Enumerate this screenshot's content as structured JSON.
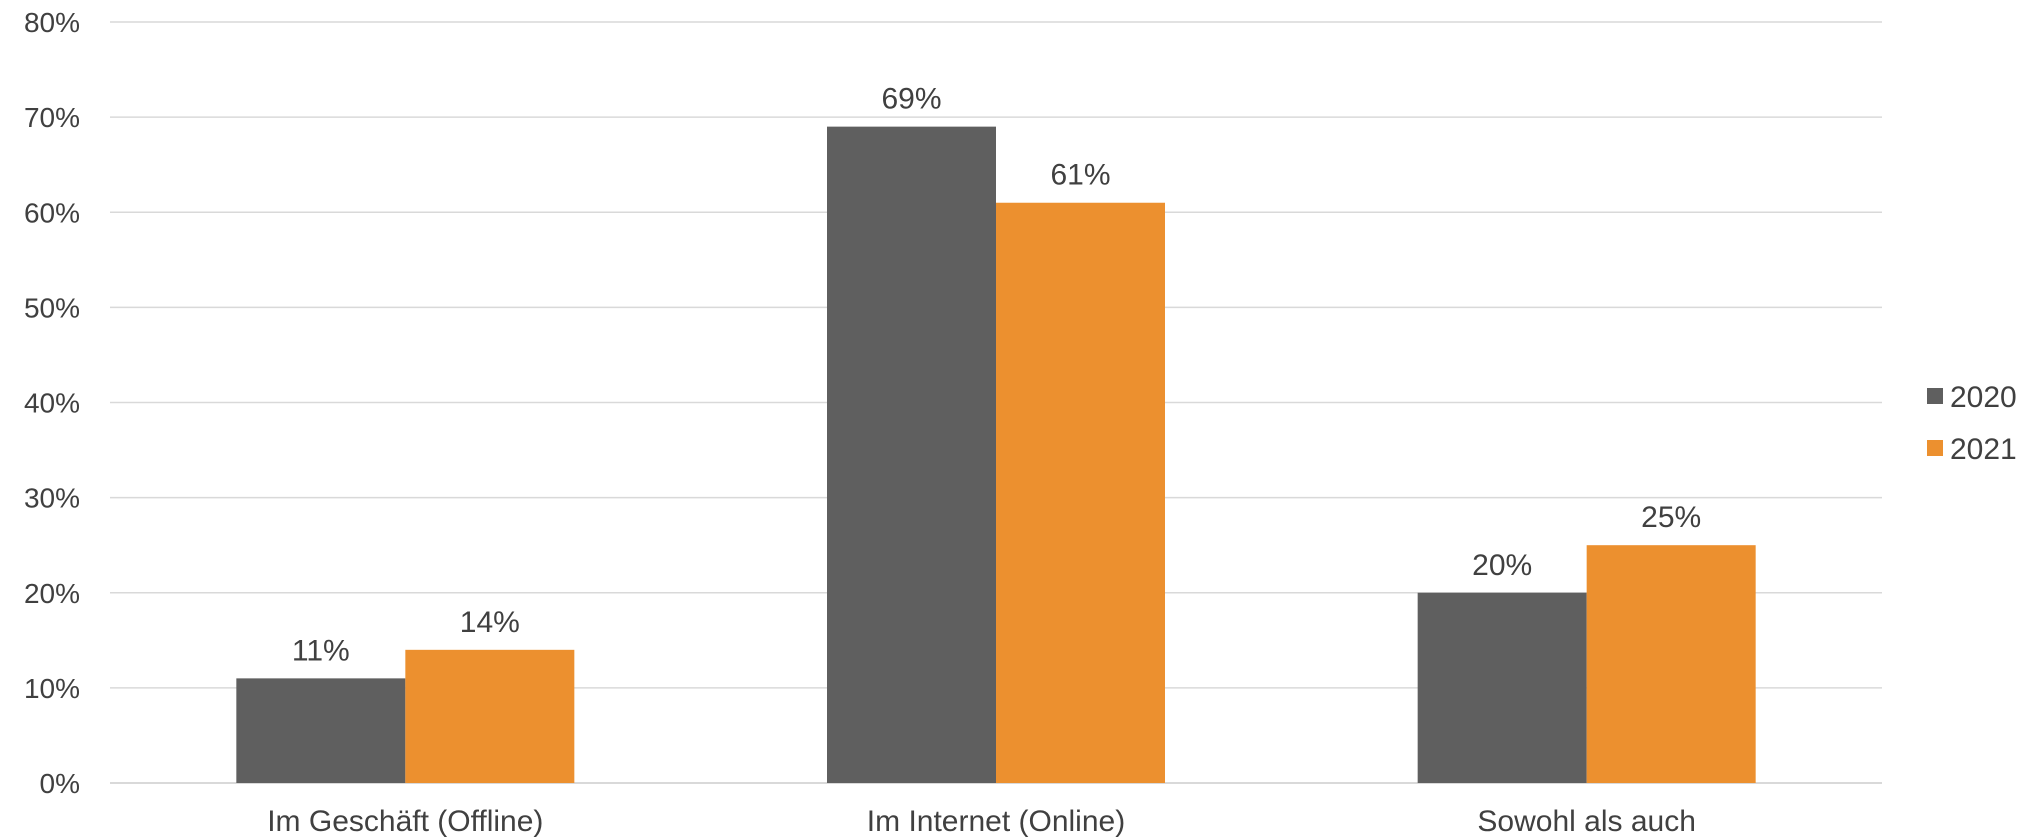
{
  "chart_data": {
    "type": "bar",
    "title": "",
    "xlabel": "",
    "ylabel": "",
    "categories": [
      "Im Geschäft (Offline)",
      "Im Internet (Online)",
      "Sowohl als auch"
    ],
    "series": [
      {
        "name": "2020",
        "color": "#5f5f5f",
        "values": [
          0.11,
          0.69,
          0.2
        ],
        "labels": [
          "11%",
          "69%",
          "20%"
        ]
      },
      {
        "name": "2021",
        "color": "#ec902f",
        "values": [
          0.14,
          0.61,
          0.25
        ],
        "labels": [
          "14%",
          "61%",
          "25%"
        ]
      }
    ],
    "y_ticks": [
      "0%",
      "10%",
      "20%",
      "30%",
      "40%",
      "50%",
      "60%",
      "70%",
      "80%"
    ],
    "ylim": [
      0,
      0.8
    ],
    "grid": true,
    "legend_position": "right"
  }
}
